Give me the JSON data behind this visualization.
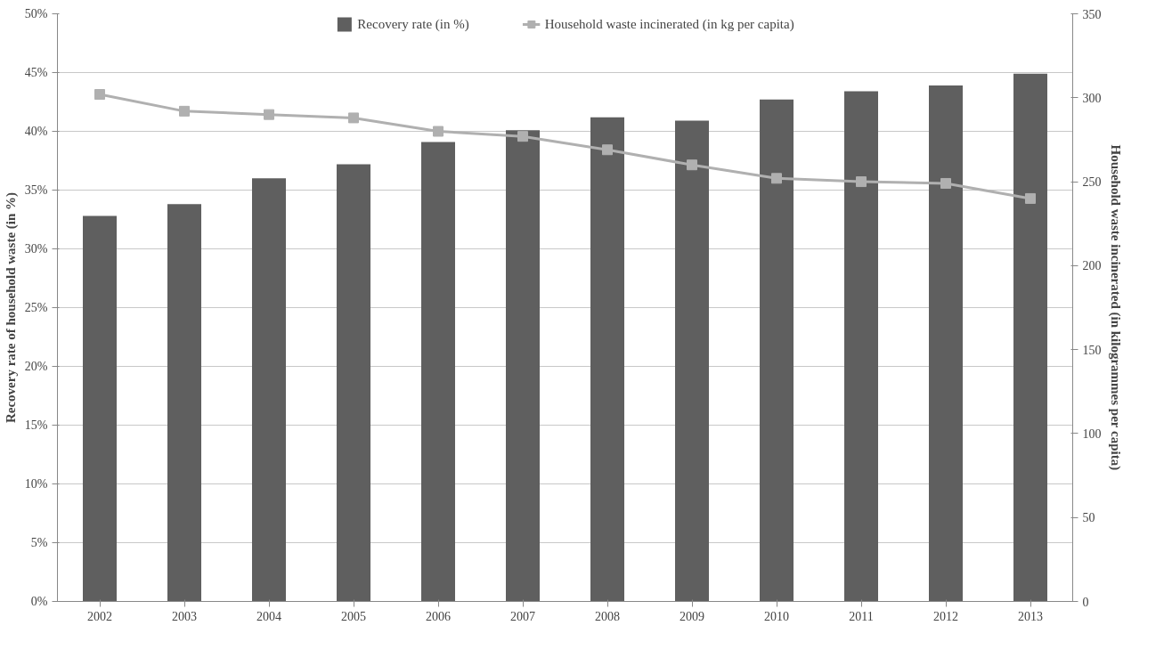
{
  "chart_data": {
    "type": "bar",
    "categories": [
      "2002",
      "2003",
      "2004",
      "2005",
      "2006",
      "2007",
      "2008",
      "2009",
      "2010",
      "2011",
      "2012",
      "2013"
    ],
    "ylabel": "Recovery rate of household waste (in %)",
    "y2label": "Household waste incinerated (in kilogrammes per capita)",
    "series": [
      {
        "name": "Recovery rate (in %)",
        "color": "#5f5f5f",
        "values": [
          32.8,
          33.8,
          36.0,
          37.2,
          39.1,
          40.1,
          41.2,
          40.9,
          42.7,
          43.4,
          43.9,
          44.9
        ]
      },
      {
        "name": "Household waste incinerated (in kg per capita)",
        "type": "line",
        "axis": "y2",
        "color": "#b0b0b0",
        "marker": "square",
        "values": [
          302,
          292,
          290,
          288,
          280,
          277,
          269,
          260,
          252,
          250,
          249,
          240
        ]
      }
    ],
    "ylim": [
      0,
      50
    ],
    "yticks": [
      {
        "value": 0,
        "label": "0%"
      },
      {
        "value": 5,
        "label": "5%"
      },
      {
        "value": 10,
        "label": "10%"
      },
      {
        "value": 15,
        "label": "15%"
      },
      {
        "value": 20,
        "label": "20%"
      },
      {
        "value": 25,
        "label": "25%"
      },
      {
        "value": 30,
        "label": "30%"
      },
      {
        "value": 35,
        "label": "35%"
      },
      {
        "value": 40,
        "label": "40%"
      },
      {
        "value": 45,
        "label": "45%"
      },
      {
        "value": 50,
        "label": "50%"
      }
    ],
    "y2lim": [
      0,
      350
    ],
    "y2ticks": [
      0,
      50,
      100,
      150,
      200,
      250,
      300,
      350
    ],
    "grid": "y",
    "legend": "top"
  }
}
